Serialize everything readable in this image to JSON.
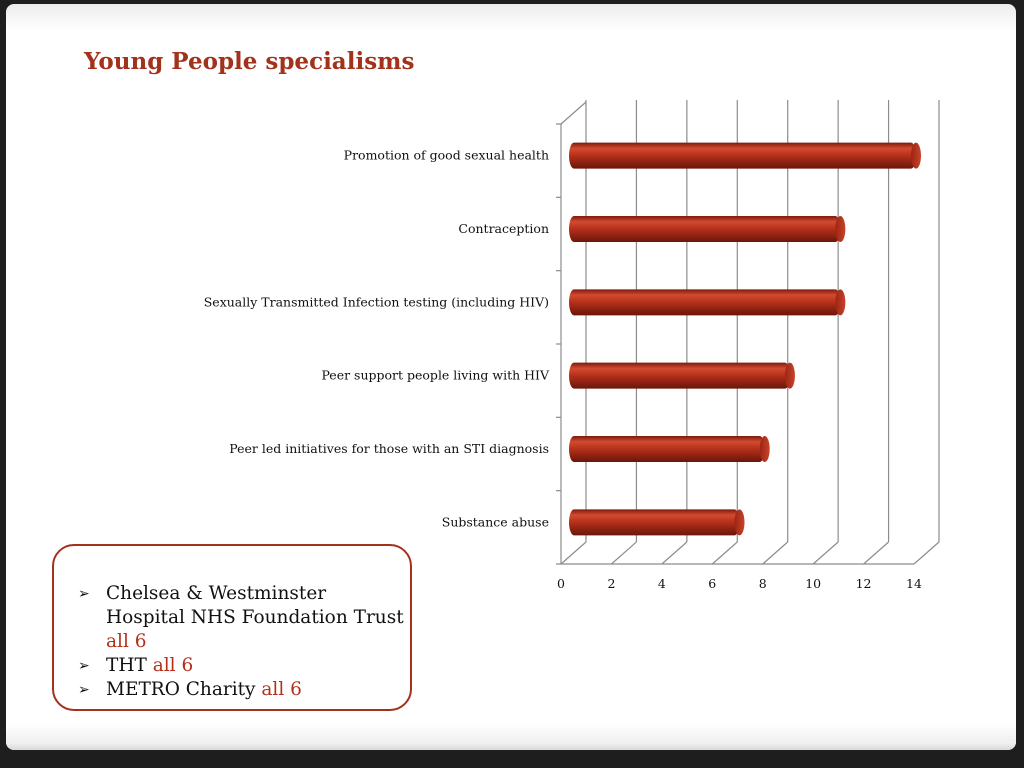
{
  "slide": {
    "title": "Young People specialisms"
  },
  "chart_data": {
    "type": "bar",
    "orientation": "horizontal",
    "style": "3d-cylinder",
    "categories": [
      "Promotion of good sexual health",
      "Contraception",
      "Sexually Transmitted Infection testing (including HIV)",
      "Peer support people living with HIV",
      "Peer led initiatives for those with an STI diagnosis",
      "Substance abuse"
    ],
    "values": [
      14,
      11,
      11,
      9,
      8,
      7
    ],
    "xlim": [
      0,
      14
    ],
    "x_ticks": [
      "0",
      "2",
      "4",
      "6",
      "8",
      "10",
      "12",
      "14"
    ],
    "grid": "vertical",
    "legend": "none",
    "bar_color": "#b5301a"
  },
  "note": {
    "items": [
      {
        "text": "Chelsea & Westminster Hospital NHS Foundation Trust",
        "highlight": "all 6"
      },
      {
        "text": "THT",
        "highlight": "all 6"
      },
      {
        "text": "METRO Charity",
        "highlight": "all 6"
      }
    ]
  },
  "colors": {
    "accent": "#a3321d",
    "highlight": "#b5301a"
  }
}
